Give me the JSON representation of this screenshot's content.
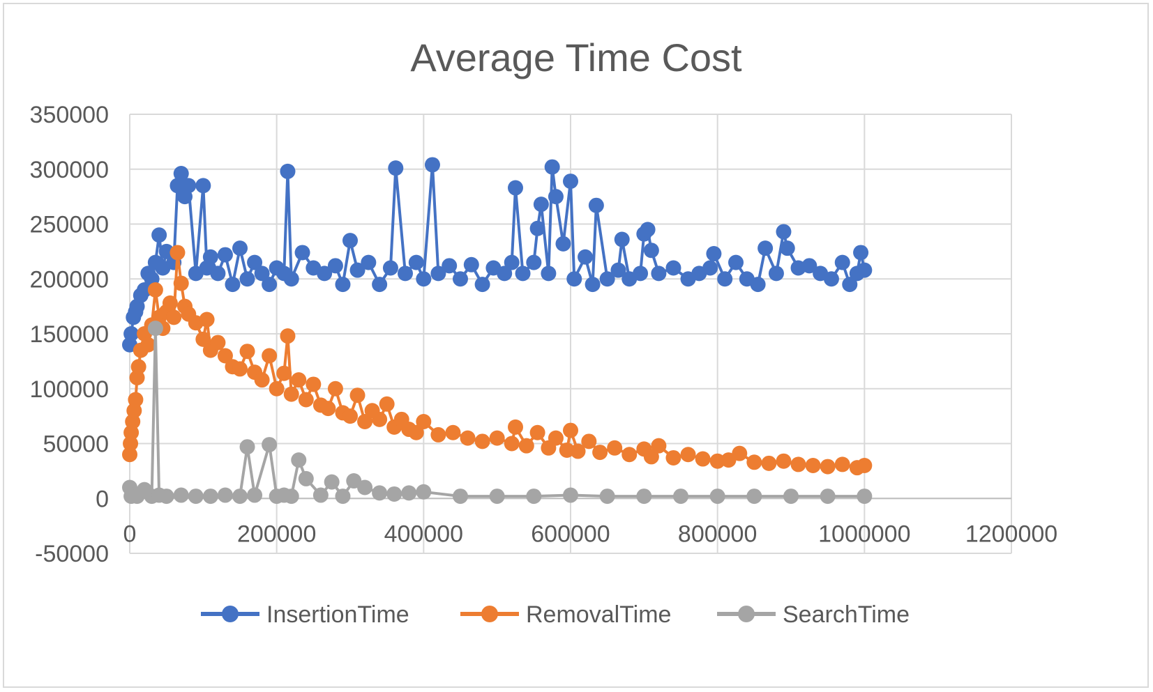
{
  "chart_data": {
    "type": "scatter",
    "title": "Average Time Cost",
    "xlabel": "",
    "ylabel": "",
    "xlim": [
      0,
      1200000
    ],
    "ylim": [
      -50000,
      350000
    ],
    "x_ticks": [
      "0",
      "200000",
      "400000",
      "600000",
      "800000",
      "1000000",
      "1200000"
    ],
    "y_ticks": [
      "350000",
      "300000",
      "250000",
      "200000",
      "150000",
      "100000",
      "50000",
      "0",
      "-50000"
    ],
    "grid": true,
    "legend_position": "bottom",
    "series": [
      {
        "name": "InsertionTime",
        "color": "#4472C4",
        "x": [
          0,
          2000,
          5000,
          8000,
          10000,
          15000,
          20000,
          25000,
          30000,
          35000,
          40000,
          45000,
          50000,
          60000,
          65000,
          70000,
          75000,
          80000,
          90000,
          100000,
          105000,
          110000,
          120000,
          130000,
          140000,
          150000,
          160000,
          170000,
          180000,
          190000,
          200000,
          210000,
          215000,
          220000,
          235000,
          250000,
          265000,
          280000,
          290000,
          300000,
          310000,
          325000,
          340000,
          355000,
          362000,
          375000,
          390000,
          400000,
          412000,
          420000,
          435000,
          450000,
          465000,
          480000,
          495000,
          510000,
          520000,
          525000,
          535000,
          550000,
          555000,
          560000,
          570000,
          575000,
          580000,
          590000,
          600000,
          605000,
          620000,
          630000,
          635000,
          650000,
          665000,
          670000,
          680000,
          695000,
          700000,
          705000,
          710000,
          720000,
          740000,
          760000,
          775000,
          790000,
          795000,
          810000,
          825000,
          840000,
          855000,
          865000,
          880000,
          890000,
          895000,
          910000,
          925000,
          940000,
          955000,
          970000,
          980000,
          990000,
          995000,
          1000000
        ],
        "y": [
          140000,
          150000,
          165000,
          170000,
          175000,
          185000,
          190000,
          205000,
          200000,
          215000,
          240000,
          210000,
          225000,
          215000,
          285000,
          296000,
          275000,
          285000,
          205000,
          285000,
          210000,
          220000,
          205000,
          222000,
          195000,
          228000,
          200000,
          215000,
          205000,
          195000,
          210000,
          205000,
          298000,
          200000,
          224000,
          210000,
          205000,
          212000,
          195000,
          235000,
          208000,
          215000,
          195000,
          210000,
          301000,
          205000,
          215000,
          200000,
          304000,
          205000,
          212000,
          200000,
          213000,
          195000,
          210000,
          205000,
          215000,
          283000,
          205000,
          215000,
          246000,
          268000,
          205000,
          302000,
          275000,
          232000,
          289000,
          200000,
          220000,
          195000,
          267000,
          200000,
          208000,
          236000,
          200000,
          205000,
          241000,
          245000,
          226000,
          205000,
          210000,
          200000,
          205000,
          210000,
          223000,
          200000,
          215000,
          200000,
          195000,
          228000,
          205000,
          243000,
          228000,
          210000,
          212000,
          205000,
          200000,
          215000,
          195000,
          205000,
          224000,
          208000
        ]
      },
      {
        "name": "RemovalTime",
        "color": "#ED7D31",
        "x": [
          0,
          1000,
          2000,
          4000,
          6000,
          8000,
          10000,
          12000,
          15000,
          20000,
          25000,
          30000,
          35000,
          40000,
          45000,
          50000,
          55000,
          60000,
          65000,
          70000,
          75000,
          80000,
          90000,
          100000,
          105000,
          110000,
          120000,
          130000,
          140000,
          150000,
          160000,
          170000,
          180000,
          190000,
          200000,
          210000,
          215000,
          220000,
          230000,
          240000,
          250000,
          260000,
          270000,
          280000,
          290000,
          300000,
          310000,
          320000,
          330000,
          340000,
          350000,
          360000,
          370000,
          380000,
          390000,
          400000,
          420000,
          440000,
          460000,
          480000,
          500000,
          520000,
          525000,
          540000,
          555000,
          570000,
          580000,
          595000,
          600000,
          610000,
          625000,
          640000,
          660000,
          680000,
          700000,
          710000,
          720000,
          740000,
          760000,
          780000,
          800000,
          815000,
          830000,
          850000,
          870000,
          890000,
          910000,
          930000,
          950000,
          970000,
          990000,
          1000000
        ],
        "y": [
          40000,
          50000,
          60000,
          70000,
          80000,
          90000,
          110000,
          120000,
          135000,
          150000,
          140000,
          158000,
          190000,
          165000,
          155000,
          170000,
          178000,
          165000,
          224000,
          196000,
          175000,
          168000,
          160000,
          145000,
          163000,
          135000,
          142000,
          130000,
          120000,
          118000,
          134000,
          115000,
          108000,
          130000,
          100000,
          114000,
          148000,
          95000,
          108000,
          90000,
          104000,
          85000,
          82000,
          100000,
          78000,
          75000,
          94000,
          70000,
          80000,
          72000,
          86000,
          65000,
          72000,
          63000,
          60000,
          70000,
          58000,
          60000,
          55000,
          52000,
          55000,
          50000,
          65000,
          48000,
          60000,
          46000,
          55000,
          44000,
          62000,
          43000,
          52000,
          42000,
          46000,
          40000,
          45000,
          38000,
          48000,
          37000,
          40000,
          36000,
          34000,
          35000,
          41000,
          33000,
          32000,
          34000,
          31000,
          30000,
          29000,
          31000,
          28000,
          30000
        ]
      },
      {
        "name": "SearchTime",
        "color": "#A5A5A5",
        "x": [
          0,
          2000,
          5000,
          10000,
          20000,
          30000,
          35000,
          40000,
          50000,
          70000,
          90000,
          110000,
          130000,
          150000,
          160000,
          170000,
          190000,
          200000,
          210000,
          220000,
          230000,
          240000,
          260000,
          275000,
          290000,
          305000,
          320000,
          340000,
          360000,
          380000,
          400000,
          450000,
          500000,
          550000,
          600000,
          650000,
          700000,
          750000,
          800000,
          850000,
          900000,
          950000,
          1000000
        ],
        "y": [
          10000,
          2000,
          3000,
          2000,
          8000,
          2000,
          155000,
          3000,
          2000,
          3000,
          2000,
          2000,
          3000,
          2000,
          47000,
          3000,
          49000,
          2000,
          3000,
          2000,
          35000,
          18000,
          3000,
          15000,
          2000,
          16000,
          10000,
          5000,
          4000,
          5000,
          6000,
          2000,
          2000,
          2000,
          3000,
          2000,
          2000,
          2000,
          2000,
          2000,
          2000,
          2000,
          2000
        ]
      }
    ]
  }
}
